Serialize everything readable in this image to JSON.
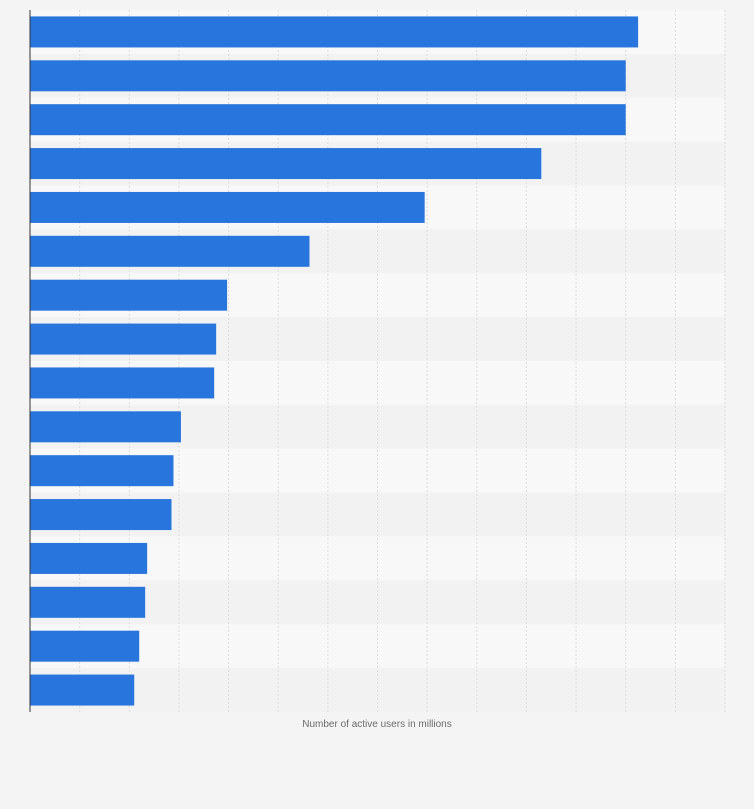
{
  "chart_data": {
    "type": "bar",
    "orientation": "horizontal",
    "title": "",
    "xlabel": "Number of active users in millions",
    "ylabel": "",
    "categories": [
      "",
      "",
      "",
      "",
      "",
      "",
      "",
      "",
      "",
      "",
      "",
      "",
      "",
      "",
      "",
      ""
    ],
    "values": [
      1225,
      1200,
      1200,
      1030,
      795,
      563,
      397,
      375,
      371,
      304,
      289,
      285,
      236,
      232,
      220,
      210
    ],
    "xlim": [
      0,
      1400
    ],
    "grid": true,
    "legend": "none"
  },
  "colors": {
    "bar": "#2775dd",
    "background": "#f4f4f5",
    "row_light": "#f8f8f8",
    "row_dark": "#f2f2f3",
    "grid": "#dcdcdc",
    "axis": "#333333"
  }
}
